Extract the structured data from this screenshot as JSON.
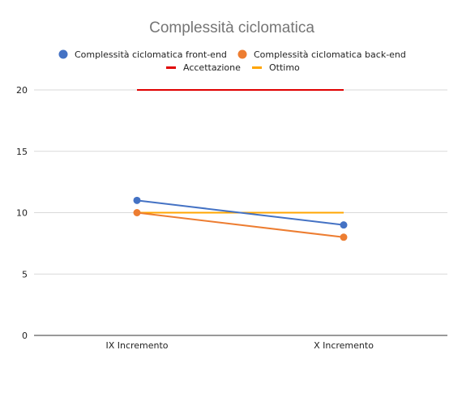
{
  "chart_data": {
    "type": "line",
    "title": "Complessità ciclomatica",
    "xlabel": "",
    "ylabel": "",
    "categories": [
      "IX Incremento",
      "X Incremento"
    ],
    "ylim": [
      0,
      20
    ],
    "yticks": [
      "0",
      "5",
      "10",
      "15",
      "20"
    ],
    "grid": true,
    "legend_position": "top",
    "series": [
      {
        "name": "Complessità ciclomatica front-end",
        "values": [
          11,
          9
        ],
        "color": "#4472c4",
        "marker": "circle"
      },
      {
        "name": "Complessità ciclomatica back-end",
        "values": [
          10,
          8
        ],
        "color": "#ed7d31",
        "marker": "circle"
      },
      {
        "name": "Accettazione",
        "values": [
          20,
          20
        ],
        "color": "#e00000",
        "marker": "none"
      },
      {
        "name": "Ottimo",
        "values": [
          10,
          10
        ],
        "color": "#ffa500",
        "marker": "none"
      }
    ]
  }
}
